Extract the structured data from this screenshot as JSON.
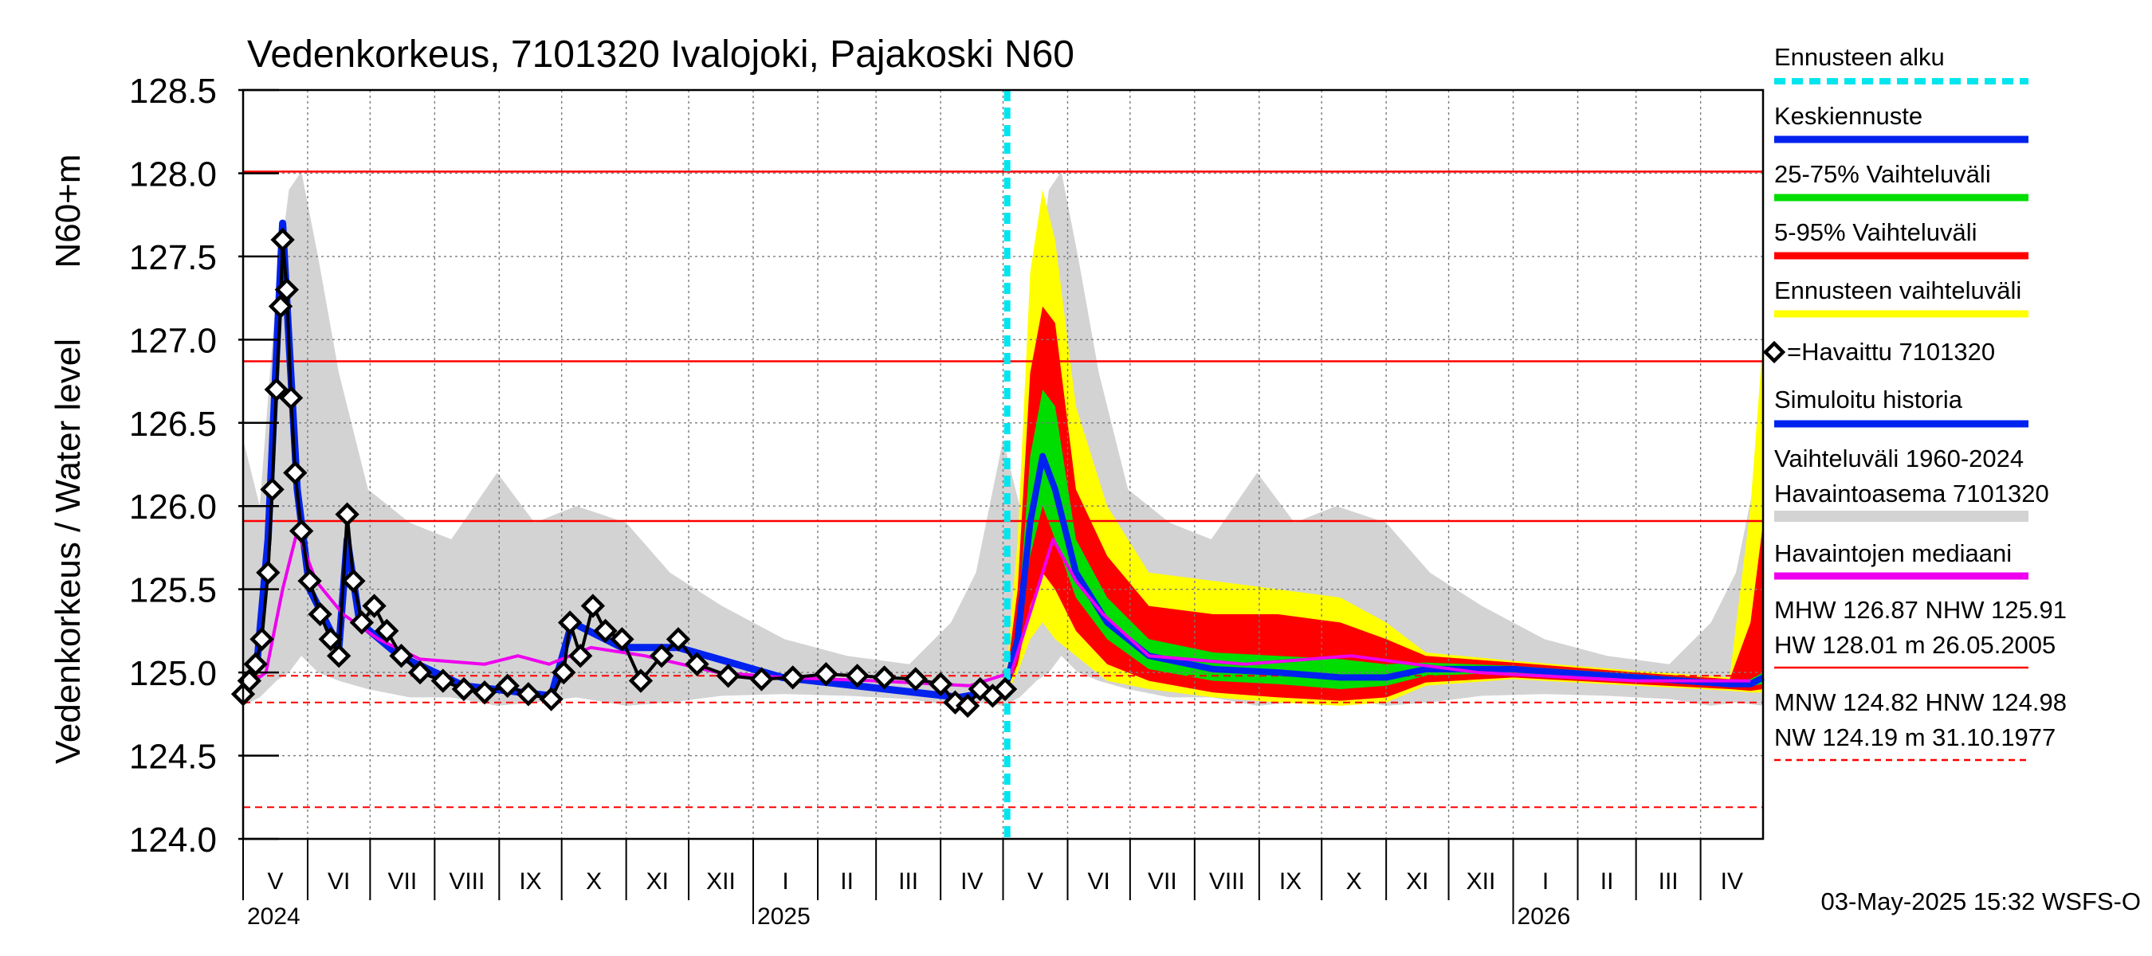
{
  "chart_data": {
    "type": "area",
    "title": "Vedenkorkeus, 7101320 Ivalojoki, Pajakoski N60",
    "ylabel_top": "N60+m",
    "ylabel": "Vedenkorkeus / Water level",
    "ylim": [
      124.0,
      128.5
    ],
    "yticks": [
      "128.5",
      "128.0",
      "127.5",
      "127.0",
      "126.5",
      "126.0",
      "125.5",
      "125.0",
      "124.5",
      "124.0"
    ],
    "months": [
      "V",
      "VI",
      "VII",
      "VIII",
      "IX",
      "X",
      "XI",
      "XII",
      "I",
      "II",
      "III",
      "IV",
      "V",
      "VI",
      "VII",
      "VIII",
      "IX",
      "X",
      "XI",
      "XII",
      "I",
      "II",
      "III",
      "IV"
    ],
    "years": [
      "2024",
      "2025",
      "2026"
    ],
    "x_start": "2024-05-01",
    "x_end": "2026-05-01",
    "forecast_start": "2025-05-03",
    "reference_lines": {
      "HW": 128.01,
      "MHW": 126.87,
      "NHW": 125.91,
      "HNW": 124.98,
      "MNW": 124.82,
      "NW": 124.19
    },
    "legend": [
      {
        "label": "Ennusteen alku",
        "color": "#00e5ee",
        "style": "dashed"
      },
      {
        "label": "Keskiennuste",
        "color": "#0022ee",
        "style": "solid"
      },
      {
        "label": "25-75% Vaihteluväli",
        "color": "#00dd00",
        "style": "solid"
      },
      {
        "label": "5-95% Vaihteluväli",
        "color": "#ff0000",
        "style": "solid"
      },
      {
        "label": "Ennusteen vaihteluväli",
        "color": "#ffff00",
        "style": "solid"
      },
      {
        "label": "=Havaittu 7101320",
        "color": "#000000",
        "style": "marker"
      },
      {
        "label": "Simuloitu historia",
        "color": "#0022ee",
        "style": "solid"
      },
      {
        "label": "Vaihteluväli 1960-2024",
        "label2": " Havaintoasema 7101320",
        "color": "#d3d3d3",
        "style": "solid"
      },
      {
        "label": "Havaintojen mediaani",
        "color": "#ee00ee",
        "style": "solid"
      }
    ],
    "stats": {
      "line1": "MHW 126.87 NHW 125.91",
      "line2": "HW 128.01 m 26.05.2005",
      "line3": "MNW 124.82 HNW 124.98",
      "line4": "NW 124.19 m 31.10.1977"
    },
    "footer": "03-May-2025 15:32 WSFS-O",
    "historical_range": [
      {
        "d": 0,
        "lo": 124.8,
        "hi": 126.4
      },
      {
        "d": 8,
        "lo": 124.85,
        "hi": 126.0
      },
      {
        "d": 16,
        "lo": 124.95,
        "hi": 127.3
      },
      {
        "d": 22,
        "lo": 125.0,
        "hi": 127.9
      },
      {
        "d": 28,
        "lo": 125.1,
        "hi": 128.01
      },
      {
        "d": 36,
        "lo": 125.0,
        "hi": 127.5
      },
      {
        "d": 46,
        "lo": 124.95,
        "hi": 126.8
      },
      {
        "d": 60,
        "lo": 124.9,
        "hi": 126.1
      },
      {
        "d": 80,
        "lo": 124.85,
        "hi": 125.9
      },
      {
        "d": 100,
        "lo": 124.85,
        "hi": 125.8
      },
      {
        "d": 122,
        "lo": 124.8,
        "hi": 126.2
      },
      {
        "d": 140,
        "lo": 124.82,
        "hi": 125.9
      },
      {
        "d": 160,
        "lo": 124.85,
        "hi": 126.0
      },
      {
        "d": 184,
        "lo": 124.8,
        "hi": 125.9
      },
      {
        "d": 205,
        "lo": 124.82,
        "hi": 125.6
      },
      {
        "d": 230,
        "lo": 124.86,
        "hi": 125.4
      },
      {
        "d": 260,
        "lo": 124.87,
        "hi": 125.2
      },
      {
        "d": 290,
        "lo": 124.86,
        "hi": 125.1
      },
      {
        "d": 320,
        "lo": 124.84,
        "hi": 125.05
      },
      {
        "d": 340,
        "lo": 124.8,
        "hi": 125.3
      },
      {
        "d": 352,
        "lo": 124.82,
        "hi": 125.6
      },
      {
        "d": 365,
        "lo": 124.8,
        "hi": 126.4
      }
    ],
    "observed": [
      {
        "date": "2024-05-01",
        "value": 124.87
      },
      {
        "date": "2024-05-04",
        "value": 124.95
      },
      {
        "date": "2024-05-07",
        "value": 125.05
      },
      {
        "date": "2024-05-10",
        "value": 125.2
      },
      {
        "date": "2024-05-13",
        "value": 125.6
      },
      {
        "date": "2024-05-15",
        "value": 126.1
      },
      {
        "date": "2024-05-17",
        "value": 126.7
      },
      {
        "date": "2024-05-19",
        "value": 127.2
      },
      {
        "date": "2024-05-20",
        "value": 127.6
      },
      {
        "date": "2024-05-22",
        "value": 127.3
      },
      {
        "date": "2024-05-24",
        "value": 126.65
      },
      {
        "date": "2024-05-26",
        "value": 126.2
      },
      {
        "date": "2024-05-29",
        "value": 125.85
      },
      {
        "date": "2024-06-02",
        "value": 125.55
      },
      {
        "date": "2024-06-07",
        "value": 125.35
      },
      {
        "date": "2024-06-12",
        "value": 125.2
      },
      {
        "date": "2024-06-16",
        "value": 125.1
      },
      {
        "date": "2024-06-20",
        "value": 125.95
      },
      {
        "date": "2024-06-23",
        "value": 125.55
      },
      {
        "date": "2024-06-27",
        "value": 125.3
      },
      {
        "date": "2024-07-03",
        "value": 125.4
      },
      {
        "date": "2024-07-09",
        "value": 125.25
      },
      {
        "date": "2024-07-16",
        "value": 125.1
      },
      {
        "date": "2024-07-25",
        "value": 125.0
      },
      {
        "date": "2024-08-05",
        "value": 124.95
      },
      {
        "date": "2024-08-15",
        "value": 124.9
      },
      {
        "date": "2024-08-25",
        "value": 124.88
      },
      {
        "date": "2024-09-05",
        "value": 124.92
      },
      {
        "date": "2024-09-15",
        "value": 124.87
      },
      {
        "date": "2024-09-26",
        "value": 124.84
      },
      {
        "date": "2024-10-02",
        "value": 125.0
      },
      {
        "date": "2024-10-05",
        "value": 125.3
      },
      {
        "date": "2024-10-10",
        "value": 125.1
      },
      {
        "date": "2024-10-16",
        "value": 125.4
      },
      {
        "date": "2024-10-22",
        "value": 125.25
      },
      {
        "date": "2024-10-30",
        "value": 125.2
      },
      {
        "date": "2024-11-08",
        "value": 124.95
      },
      {
        "date": "2024-11-18",
        "value": 125.1
      },
      {
        "date": "2024-11-26",
        "value": 125.2
      },
      {
        "date": "2024-12-05",
        "value": 125.05
      },
      {
        "date": "2024-12-20",
        "value": 124.98
      },
      {
        "date": "2025-01-05",
        "value": 124.96
      },
      {
        "date": "2025-01-20",
        "value": 124.97
      },
      {
        "date": "2025-02-05",
        "value": 124.99
      },
      {
        "date": "2025-02-20",
        "value": 124.98
      },
      {
        "date": "2025-03-05",
        "value": 124.97
      },
      {
        "date": "2025-03-20",
        "value": 124.96
      },
      {
        "date": "2025-04-01",
        "value": 124.93
      },
      {
        "date": "2025-04-08",
        "value": 124.82
      },
      {
        "date": "2025-04-14",
        "value": 124.8
      },
      {
        "date": "2025-04-20",
        "value": 124.9
      },
      {
        "date": "2025-04-26",
        "value": 124.86
      },
      {
        "date": "2025-05-02",
        "value": 124.9
      }
    ],
    "simulated_history": [
      {
        "date": "2024-05-01",
        "value": 124.85
      },
      {
        "date": "2024-05-08",
        "value": 125.1
      },
      {
        "date": "2024-05-13",
        "value": 125.8
      },
      {
        "date": "2024-05-17",
        "value": 126.9
      },
      {
        "date": "2024-05-20",
        "value": 127.7
      },
      {
        "date": "2024-05-23",
        "value": 127.0
      },
      {
        "date": "2024-05-27",
        "value": 126.1
      },
      {
        "date": "2024-06-02",
        "value": 125.5
      },
      {
        "date": "2024-06-16",
        "value": 125.15
      },
      {
        "date": "2024-06-20",
        "value": 125.8
      },
      {
        "date": "2024-06-26",
        "value": 125.3
      },
      {
        "date": "2024-07-15",
        "value": 125.1
      },
      {
        "date": "2024-08-15",
        "value": 124.92
      },
      {
        "date": "2024-09-26",
        "value": 124.86
      },
      {
        "date": "2024-10-06",
        "value": 125.3
      },
      {
        "date": "2024-10-30",
        "value": 125.15
      },
      {
        "date": "2024-11-26",
        "value": 125.15
      },
      {
        "date": "2025-01-15",
        "value": 124.97
      },
      {
        "date": "2025-04-10",
        "value": 124.85
      },
      {
        "date": "2025-05-03",
        "value": 124.9
      }
    ],
    "median": [
      {
        "date": "2024-05-01",
        "value": 124.9
      },
      {
        "date": "2024-05-12",
        "value": 125.0
      },
      {
        "date": "2024-05-20",
        "value": 125.5
      },
      {
        "date": "2024-05-27",
        "value": 125.85
      },
      {
        "date": "2024-06-05",
        "value": 125.55
      },
      {
        "date": "2024-06-18",
        "value": 125.35
      },
      {
        "date": "2024-07-05",
        "value": 125.2
      },
      {
        "date": "2024-07-25",
        "value": 125.08
      },
      {
        "date": "2024-08-25",
        "value": 125.05
      },
      {
        "date": "2024-09-10",
        "value": 125.1
      },
      {
        "date": "2024-09-25",
        "value": 125.05
      },
      {
        "date": "2024-10-15",
        "value": 125.15
      },
      {
        "date": "2024-11-10",
        "value": 125.1
      },
      {
        "date": "2024-12-15",
        "value": 125.0
      },
      {
        "date": "2025-01-15",
        "value": 124.97
      },
      {
        "date": "2025-03-01",
        "value": 124.95
      },
      {
        "date": "2025-04-15",
        "value": 124.92
      },
      {
        "date": "2025-05-05",
        "value": 125.0
      },
      {
        "date": "2025-05-15",
        "value": 125.4
      },
      {
        "date": "2025-05-25",
        "value": 125.8
      },
      {
        "date": "2025-06-05",
        "value": 125.55
      },
      {
        "date": "2025-06-18",
        "value": 125.35
      },
      {
        "date": "2025-07-10",
        "value": 125.1
      },
      {
        "date": "2025-08-25",
        "value": 125.05
      },
      {
        "date": "2025-10-15",
        "value": 125.1
      },
      {
        "date": "2025-12-15",
        "value": 125.0
      },
      {
        "date": "2026-03-01",
        "value": 124.95
      },
      {
        "date": "2026-04-25",
        "value": 124.95
      }
    ],
    "forecast": [
      {
        "date": "2025-05-03",
        "mean": 124.95,
        "p25": 124.93,
        "p75": 124.97,
        "p5": 124.9,
        "p95": 125.0,
        "min": 124.88,
        "max": 125.05
      },
      {
        "date": "2025-05-08",
        "mean": 125.2,
        "p25": 125.15,
        "p75": 125.3,
        "p5": 125.05,
        "p95": 125.5,
        "min": 125.0,
        "max": 125.8
      },
      {
        "date": "2025-05-14",
        "mean": 125.9,
        "p25": 125.7,
        "p75": 126.3,
        "p5": 125.4,
        "p95": 126.8,
        "min": 125.2,
        "max": 127.4
      },
      {
        "date": "2025-05-20",
        "mean": 126.3,
        "p25": 126.0,
        "p75": 126.7,
        "p5": 125.6,
        "p95": 127.2,
        "min": 125.3,
        "max": 127.9
      },
      {
        "date": "2025-05-26",
        "mean": 126.1,
        "p25": 125.8,
        "p75": 126.6,
        "p5": 125.5,
        "p95": 127.1,
        "min": 125.2,
        "max": 127.6
      },
      {
        "date": "2025-06-05",
        "mean": 125.6,
        "p25": 125.45,
        "p75": 125.8,
        "p5": 125.25,
        "p95": 126.1,
        "min": 125.1,
        "max": 126.6
      },
      {
        "date": "2025-06-20",
        "mean": 125.3,
        "p25": 125.2,
        "p75": 125.45,
        "p5": 125.05,
        "p95": 125.7,
        "min": 124.95,
        "max": 126.0
      },
      {
        "date": "2025-07-10",
        "mean": 125.1,
        "p25": 125.02,
        "p75": 125.2,
        "p5": 124.95,
        "p95": 125.4,
        "min": 124.9,
        "max": 125.6
      },
      {
        "date": "2025-08-10",
        "mean": 125.02,
        "p25": 124.95,
        "p75": 125.12,
        "p5": 124.88,
        "p95": 125.35,
        "min": 124.85,
        "max": 125.55
      },
      {
        "date": "2025-09-10",
        "mean": 125.0,
        "p25": 124.93,
        "p75": 125.1,
        "p5": 124.85,
        "p95": 125.35,
        "min": 124.82,
        "max": 125.5
      },
      {
        "date": "2025-10-10",
        "mean": 124.97,
        "p25": 124.9,
        "p75": 125.08,
        "p5": 124.83,
        "p95": 125.3,
        "min": 124.8,
        "max": 125.45
      },
      {
        "date": "2025-11-01",
        "mean": 124.97,
        "p25": 124.92,
        "p75": 125.05,
        "p5": 124.85,
        "p95": 125.2,
        "min": 124.82,
        "max": 125.3
      },
      {
        "date": "2025-11-20",
        "mean": 125.02,
        "p25": 124.98,
        "p75": 125.06,
        "p5": 124.94,
        "p95": 125.1,
        "min": 124.92,
        "max": 125.12
      },
      {
        "date": "2026-01-01",
        "mean": 125.02,
        "p25": 125.0,
        "p75": 125.04,
        "p5": 124.97,
        "p95": 125.06,
        "min": 124.96,
        "max": 125.07
      },
      {
        "date": "2026-03-01",
        "mean": 124.97,
        "p25": 124.95,
        "p75": 124.99,
        "p5": 124.93,
        "p95": 125.0,
        "min": 124.92,
        "max": 125.01
      },
      {
        "date": "2026-04-15",
        "mean": 124.93,
        "p25": 124.92,
        "p75": 124.95,
        "p5": 124.9,
        "p95": 124.96,
        "min": 124.89,
        "max": 124.97
      },
      {
        "date": "2026-04-25",
        "mean": 124.93,
        "p25": 124.92,
        "p75": 124.96,
        "p5": 124.89,
        "p95": 125.3,
        "min": 124.88,
        "max": 126.0
      },
      {
        "date": "2026-05-01",
        "mean": 124.97,
        "p25": 124.93,
        "p75": 125.0,
        "p5": 124.9,
        "p95": 125.9,
        "min": 124.88,
        "max": 127.0
      }
    ]
  }
}
